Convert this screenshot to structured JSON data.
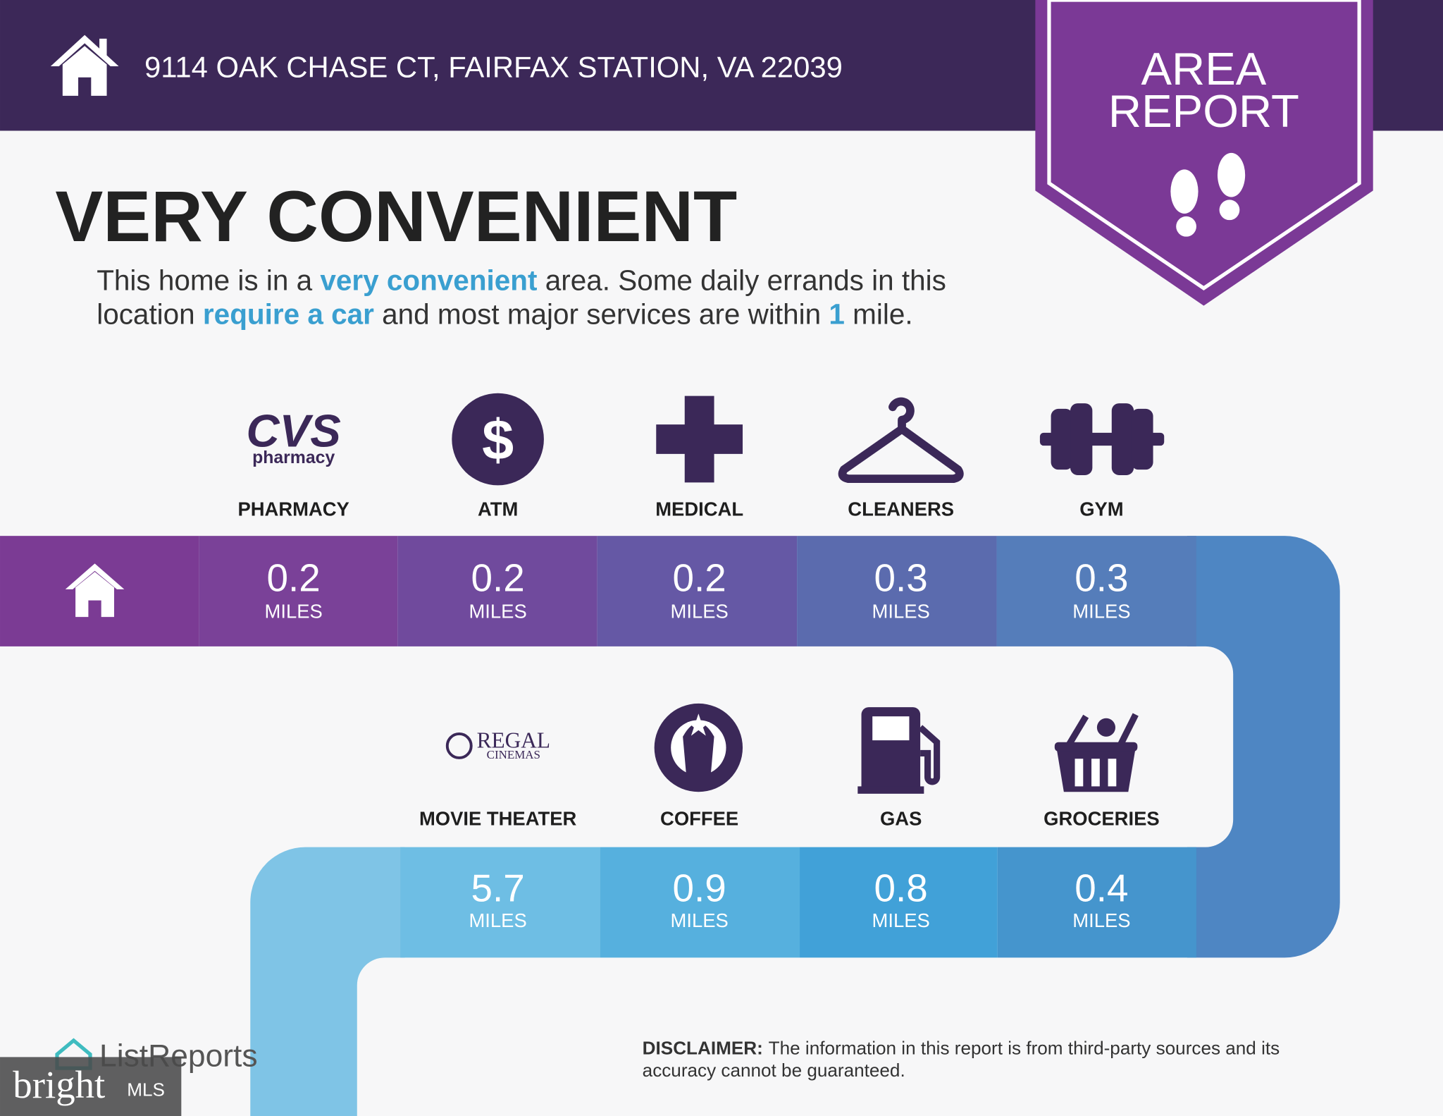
{
  "header": {
    "address": "9114 OAK CHASE CT, FAIRFAX STATION, VA 22039",
    "badge_lines": [
      "AREA",
      "REPORT"
    ]
  },
  "headline": "VERY CONVENIENT",
  "summary_lines": [
    [
      {
        "text": "This home is in a "
      },
      {
        "text": "very convenient",
        "highlight": true
      },
      {
        "text": " area. Some daily errands in this"
      }
    ],
    [
      {
        "text": "location "
      },
      {
        "text": "require a car",
        "highlight": true
      },
      {
        "text": " and most major services are within "
      },
      {
        "text": "1",
        "highlight": true
      },
      {
        "text": " mile."
      }
    ]
  ],
  "highlight_color": "#3a9fd0",
  "rows": [
    {
      "amenities": [
        {
          "label": "PHARMACY",
          "distance": 0.2,
          "unit": "MILES",
          "logo": [
            "CVS",
            "pharmacy"
          ]
        },
        {
          "label": "ATM",
          "distance": 0.2,
          "unit": "MILES",
          "logo": [
            "$"
          ]
        },
        {
          "label": "MEDICAL",
          "distance": 0.2,
          "unit": "MILES"
        },
        {
          "label": "CLEANERS",
          "distance": 0.3,
          "unit": "MILES"
        },
        {
          "label": "GYM",
          "distance": 0.3,
          "unit": "MILES"
        }
      ]
    },
    {
      "amenities": [
        {
          "label": "MOVIE THEATER",
          "distance": 5.7,
          "unit": "MILES",
          "logo": [
            "REGAL",
            "CINEMAS"
          ]
        },
        {
          "label": "COFFEE",
          "distance": 0.9,
          "unit": "MILES"
        },
        {
          "label": "GAS",
          "distance": 0.8,
          "unit": "MILES"
        },
        {
          "label": "GROCERIES",
          "distance": 0.4,
          "unit": "MILES"
        }
      ]
    }
  ],
  "footer": {
    "logo": "ListReports",
    "watermark": [
      "bright",
      "MLS"
    ],
    "disclaimer": {
      "label": "DISCLAIMER:",
      "lines": [
        "The information in this report is from third-party sources and its",
        "accuracy cannot be guaranteed."
      ]
    }
  }
}
